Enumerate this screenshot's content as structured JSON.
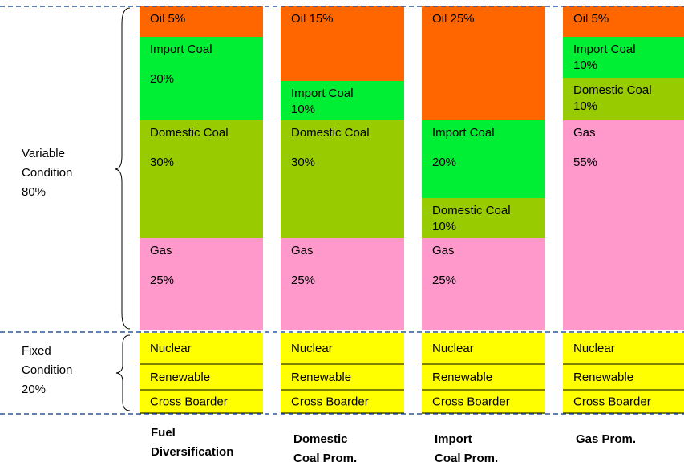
{
  "left_labels": {
    "variable": [
      "Variable",
      "Condition",
      "80%"
    ],
    "fixed": [
      "Fixed",
      "Condition",
      "20%"
    ]
  },
  "columns": [
    {
      "title": [
        "Fuel",
        "Diversification"
      ],
      "segments": [
        {
          "lines": [
            "Oil 5%"
          ]
        },
        {
          "lines": [
            "Import Coal",
            "20%"
          ]
        },
        {
          "lines": [
            "Domestic Coal",
            "30%"
          ]
        },
        {
          "lines": [
            "Gas",
            "25%"
          ]
        },
        {
          "lines": [
            "Nuclear"
          ]
        },
        {
          "lines": [
            "Renewable"
          ]
        },
        {
          "lines": [
            "Cross Boarder"
          ]
        }
      ]
    },
    {
      "title": [
        "Domestic",
        "Coal Prom."
      ],
      "segments": [
        {
          "lines": [
            "Oil 15%"
          ]
        },
        {
          "lines": [
            "Import Coal",
            "10%"
          ]
        },
        {
          "lines": [
            "Domestic Coal",
            "30%"
          ]
        },
        {
          "lines": [
            "Gas",
            "25%"
          ]
        },
        {
          "lines": [
            "Nuclear"
          ]
        },
        {
          "lines": [
            "Renewable"
          ]
        },
        {
          "lines": [
            "Cross Boarder"
          ]
        }
      ]
    },
    {
      "title": [
        "Import",
        "Coal Prom."
      ],
      "segments": [
        {
          "lines": [
            "Oil 25%"
          ]
        },
        {
          "lines": [
            "Import Coal",
            "20%"
          ]
        },
        {
          "lines": [
            "Domestic Coal",
            "10%"
          ]
        },
        {
          "lines": [
            "Gas",
            "25%"
          ]
        },
        {
          "lines": [
            "Nuclear"
          ]
        },
        {
          "lines": [
            "Renewable"
          ]
        },
        {
          "lines": [
            "Cross Boarder"
          ]
        }
      ]
    },
    {
      "title": [
        "Gas Prom."
      ],
      "segments": [
        {
          "lines": [
            "Oil 5%"
          ]
        },
        {
          "lines": [
            "Import Coal",
            "10%"
          ]
        },
        {
          "lines": [
            "Domestic Coal",
            "10%"
          ]
        },
        {
          "lines": [
            "Gas",
            "55%"
          ]
        },
        {
          "lines": [
            "Nuclear"
          ]
        },
        {
          "lines": [
            "Renewable"
          ]
        },
        {
          "lines": [
            "Cross Boarder"
          ]
        }
      ]
    }
  ]
}
